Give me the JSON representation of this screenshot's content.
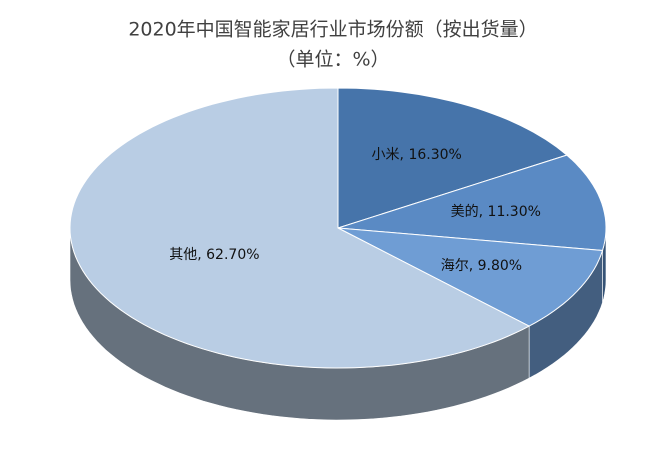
{
  "chart_data": {
    "type": "pie3d",
    "title": "2020年中国智能家居行业市场份额（按出货量）",
    "subtitle": "（单位：%）",
    "categories": [
      "小米",
      "美的",
      "海尔",
      "其他"
    ],
    "values": [
      16.3,
      11.3,
      9.8,
      62.7
    ],
    "value_labels": [
      "小米, 16.30%",
      "美的, 11.30%",
      "海尔, 9.80%",
      "其他, 62.70%"
    ],
    "colors": [
      "#4674aa",
      "#5a8ac4",
      "#6f9dd4",
      "#b9cde4"
    ]
  }
}
